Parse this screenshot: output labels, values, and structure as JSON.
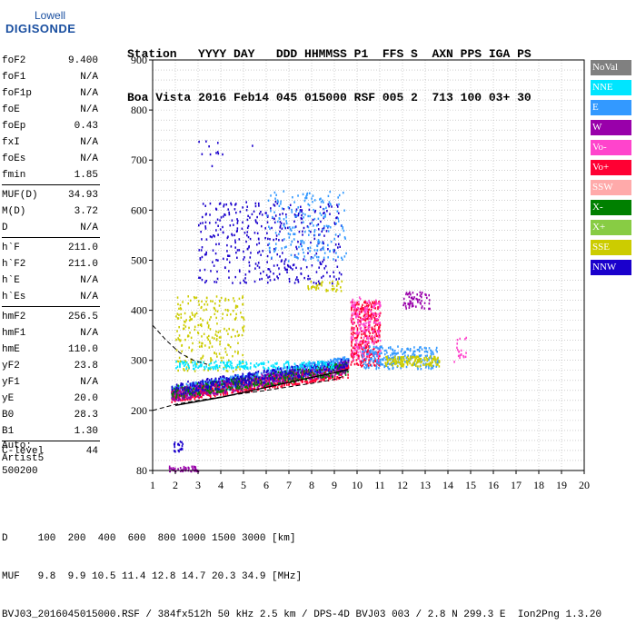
{
  "logo": {
    "line1": "Lowell",
    "line2": "DIGISONDE"
  },
  "header": {
    "row1": "Station   YYYY DAY   DDD HHMMSS P1  FFS S  AXN PPS IGA PS",
    "row2": "Boa Vista 2016 Feb14 045 015000 RSF 005 2  713 100 03+ 30"
  },
  "params": [
    [
      {
        "name": "foF2",
        "value": "9.400"
      },
      {
        "name": "foF1",
        "value": "N/A"
      },
      {
        "name": "foF1p",
        "value": "N/A"
      },
      {
        "name": "foE",
        "value": "N/A"
      },
      {
        "name": "foEp",
        "value": "0.43"
      },
      {
        "name": "fxI",
        "value": "N/A"
      },
      {
        "name": "foEs",
        "value": "N/A"
      },
      {
        "name": "fmin",
        "value": "1.85"
      }
    ],
    [
      {
        "name": "MUF(D)",
        "value": "34.93"
      },
      {
        "name": "M(D)",
        "value": "3.72"
      },
      {
        "name": "D",
        "value": "N/A"
      }
    ],
    [
      {
        "name": "h`F",
        "value": "211.0"
      },
      {
        "name": "h`F2",
        "value": "211.0"
      },
      {
        "name": "h`E",
        "value": "N/A"
      },
      {
        "name": "h`Es",
        "value": "N/A"
      }
    ],
    [
      {
        "name": "hmF2",
        "value": "256.5"
      },
      {
        "name": "hmF1",
        "value": "N/A"
      },
      {
        "name": "hmE",
        "value": "110.0"
      },
      {
        "name": "yF2",
        "value": "23.8"
      },
      {
        "name": "yF1",
        "value": "N/A"
      },
      {
        "name": "yE",
        "value": "20.0"
      },
      {
        "name": "B0",
        "value": "28.3"
      },
      {
        "name": "B1",
        "value": "1.30"
      }
    ],
    [
      {
        "name": "C-level",
        "value": "44"
      }
    ]
  ],
  "auto": {
    "line1": "Auto:",
    "line2": "Artist5",
    "line3": "500200"
  },
  "legend": [
    {
      "label": "NoVal",
      "color": "#808080"
    },
    {
      "label": "NNE",
      "color": "#00e5ff"
    },
    {
      "label": "E",
      "color": "#3399ff"
    },
    {
      "label": "W",
      "color": "#9900aa"
    },
    {
      "label": "Vo-",
      "color": "#ff44cc"
    },
    {
      "label": "Vo+",
      "color": "#ff0033"
    },
    {
      "label": "SSW",
      "color": "#ffaaaa"
    },
    {
      "label": "X-",
      "color": "#008000"
    },
    {
      "label": "X+",
      "color": "#88cc44"
    },
    {
      "label": "SSE",
      "color": "#cccc00"
    },
    {
      "label": "NNW",
      "color": "#1a00cc"
    }
  ],
  "footer": {
    "line1": "D     100  200  400  600  800 1000 1500 3000 [km]",
    "line2": "MUF   9.8  9.9 10.5 11.4 12.8 14.7 20.3 34.9 [MHz]",
    "line3": "BVJ03_2016045015000.RSF / 384fx512h 50 kHz 2.5 km / DPS-4D BVJ03 003 / 2.8 N 299.3 E  Ion2Png 1.3.20"
  },
  "chart_data": {
    "type": "scatter",
    "xlim": [
      1,
      20
    ],
    "ylim": [
      80,
      900
    ],
    "x_ticks": [
      1,
      2,
      3,
      4,
      5,
      6,
      7,
      8,
      9,
      10,
      11,
      12,
      13,
      14,
      15,
      16,
      17,
      18,
      19,
      20
    ],
    "y_ticks": [
      80,
      200,
      300,
      400,
      500,
      600,
      700,
      800,
      900
    ],
    "grid": true,
    "clusters": [
      {
        "color": "#3399ff",
        "x": [
          1.8,
          9.6
        ],
        "y": [
          225,
          300
        ],
        "n": 900
      },
      {
        "color": "#ff0033",
        "x": [
          1.8,
          9.6
        ],
        "y": [
          218,
          280
        ],
        "n": 600
      },
      {
        "color": "#9900aa",
        "x": [
          1.8,
          9.6
        ],
        "y": [
          220,
          290
        ],
        "n": 500
      },
      {
        "color": "#008000",
        "x": [
          1.8,
          9.6
        ],
        "y": [
          225,
          285
        ],
        "n": 300
      },
      {
        "color": "#1a00cc",
        "x": [
          1.8,
          9.6
        ],
        "y": [
          230,
          295
        ],
        "n": 300
      },
      {
        "color": "#cccc00",
        "x": [
          2.0,
          5.0
        ],
        "y": [
          280,
          430
        ],
        "n": 250
      },
      {
        "color": "#00e5ff",
        "x": [
          2.0,
          9.0
        ],
        "y": [
          285,
          300
        ],
        "n": 200
      },
      {
        "color": "#ff0033",
        "x": [
          9.7,
          11.0
        ],
        "y": [
          290,
          420
        ],
        "n": 350
      },
      {
        "color": "#ff44cc",
        "x": [
          9.7,
          11.0
        ],
        "y": [
          300,
          430
        ],
        "n": 200
      },
      {
        "color": "#3399ff",
        "x": [
          10.2,
          13.6
        ],
        "y": [
          285,
          330
        ],
        "n": 250
      },
      {
        "color": "#cccc00",
        "x": [
          11.2,
          13.6
        ],
        "y": [
          290,
          310
        ],
        "n": 150
      },
      {
        "color": "#9900aa",
        "x": [
          12.0,
          13.2
        ],
        "y": [
          405,
          440
        ],
        "n": 60
      },
      {
        "color": "#cccc00",
        "x": [
          7.8,
          9.3
        ],
        "y": [
          440,
          460
        ],
        "n": 40
      },
      {
        "color": "#1a00cc",
        "x": [
          3.0,
          9.3
        ],
        "y": [
          455,
          620
        ],
        "n": 400
      },
      {
        "color": "#3399ff",
        "x": [
          6.0,
          9.5
        ],
        "y": [
          500,
          640
        ],
        "n": 200
      },
      {
        "color": "#ff44cc",
        "x": [
          14.2,
          14.8
        ],
        "y": [
          290,
          350
        ],
        "n": 20
      },
      {
        "color": "#9900aa",
        "x": [
          1.7,
          3.0
        ],
        "y": [
          80,
          90
        ],
        "n": 50
      },
      {
        "color": "#1a00cc",
        "x": [
          1.9,
          2.3
        ],
        "y": [
          120,
          140
        ],
        "n": 20
      },
      {
        "color": "#1a00cc",
        "x": [
          3.0,
          5.4
        ],
        "y": [
          690,
          740
        ],
        "n": 12
      }
    ],
    "trace_x": [
      2,
      3,
      4,
      5,
      6,
      7,
      8,
      9,
      9.6
    ],
    "trace_y": [
      210,
      218,
      226,
      236,
      246,
      256,
      266,
      275,
      282
    ],
    "dashed_upper_x": [
      1,
      1.6,
      2.2,
      2.8,
      3.4
    ],
    "dashed_upper_y": [
      370,
      340,
      315,
      300,
      292
    ],
    "dashed_lower_x": [
      1,
      2,
      3,
      4,
      5,
      6,
      7,
      8,
      9,
      9.4
    ],
    "dashed_lower_y": [
      200,
      212,
      220,
      227,
      234,
      240,
      247,
      254,
      262,
      268
    ]
  }
}
